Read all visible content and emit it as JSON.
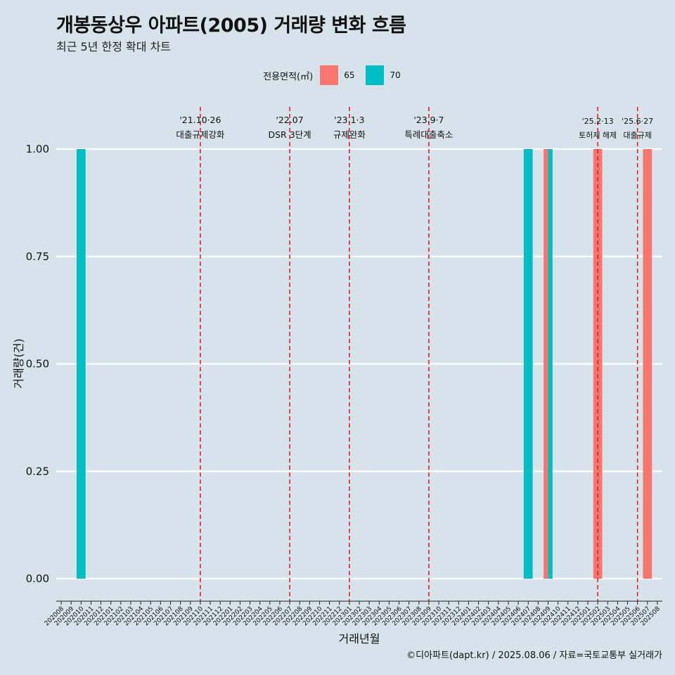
{
  "title": "개봉동상우 아파트(2005) 거래량 변화 흐름",
  "subtitle": "최근 5년 한정 확대 차트",
  "caption": "©디아파트(dapt.kr) / 2025.08.06 / 자료=국토교통부 실거래가",
  "legend": {
    "title": "전용면적(㎡)",
    "items": [
      {
        "label": "65",
        "color": "#f8766d"
      },
      {
        "label": "70",
        "color": "#00bfc4"
      }
    ]
  },
  "chart_data": {
    "type": "bar",
    "xlabel": "거래년월",
    "ylabel": "거래량(건)",
    "ylim": [
      0,
      1
    ],
    "yticks": [
      "0.00",
      "0.25",
      "0.50",
      "0.75",
      "1.00"
    ],
    "grid": true,
    "categories": [
      "202008",
      "202009",
      "202010",
      "202011",
      "202012",
      "202101",
      "202102",
      "202103",
      "202104",
      "202105",
      "202106",
      "202107",
      "202108",
      "202109",
      "202110",
      "202111",
      "202112",
      "202201",
      "202202",
      "202203",
      "202204",
      "202205",
      "202206",
      "202207",
      "202208",
      "202209",
      "202210",
      "202211",
      "202212",
      "202301",
      "202302",
      "202303",
      "202304",
      "202305",
      "202306",
      "202307",
      "202308",
      "202309",
      "202310",
      "202311",
      "202312",
      "202401",
      "202402",
      "202403",
      "202404",
      "202405",
      "202406",
      "202407",
      "202408",
      "202409",
      "202410",
      "202411",
      "202412",
      "202501",
      "202502",
      "202503",
      "202504",
      "202505",
      "202506",
      "202507",
      "202508"
    ],
    "series": [
      {
        "name": "65",
        "color": "#f8766d",
        "points": [
          {
            "x": "202409",
            "y": 1
          },
          {
            "x": "202502",
            "y": 1
          },
          {
            "x": "202507",
            "y": 1
          }
        ]
      },
      {
        "name": "70",
        "color": "#00bfc4",
        "points": [
          {
            "x": "202010",
            "y": 1
          },
          {
            "x": "202407",
            "y": 1
          },
          {
            "x": "202409",
            "y": 1
          }
        ]
      }
    ],
    "events": [
      {
        "date": "202110",
        "label1": "'21.10·26",
        "label2": "대출규제강화"
      },
      {
        "date": "202207",
        "label1": "'22.07",
        "label2": "DSR 3단계"
      },
      {
        "date": "202301",
        "label1": "'23.1·3",
        "label2": "규제완화"
      },
      {
        "date": "202309",
        "label1": "'23.9·7",
        "label2": "특례대출축소"
      },
      {
        "date": "202502",
        "label1": "'25.2·13",
        "label2": "토허제 해제"
      },
      {
        "date": "202506",
        "label1": "'25.6·27",
        "label2": "대출규제"
      }
    ]
  }
}
